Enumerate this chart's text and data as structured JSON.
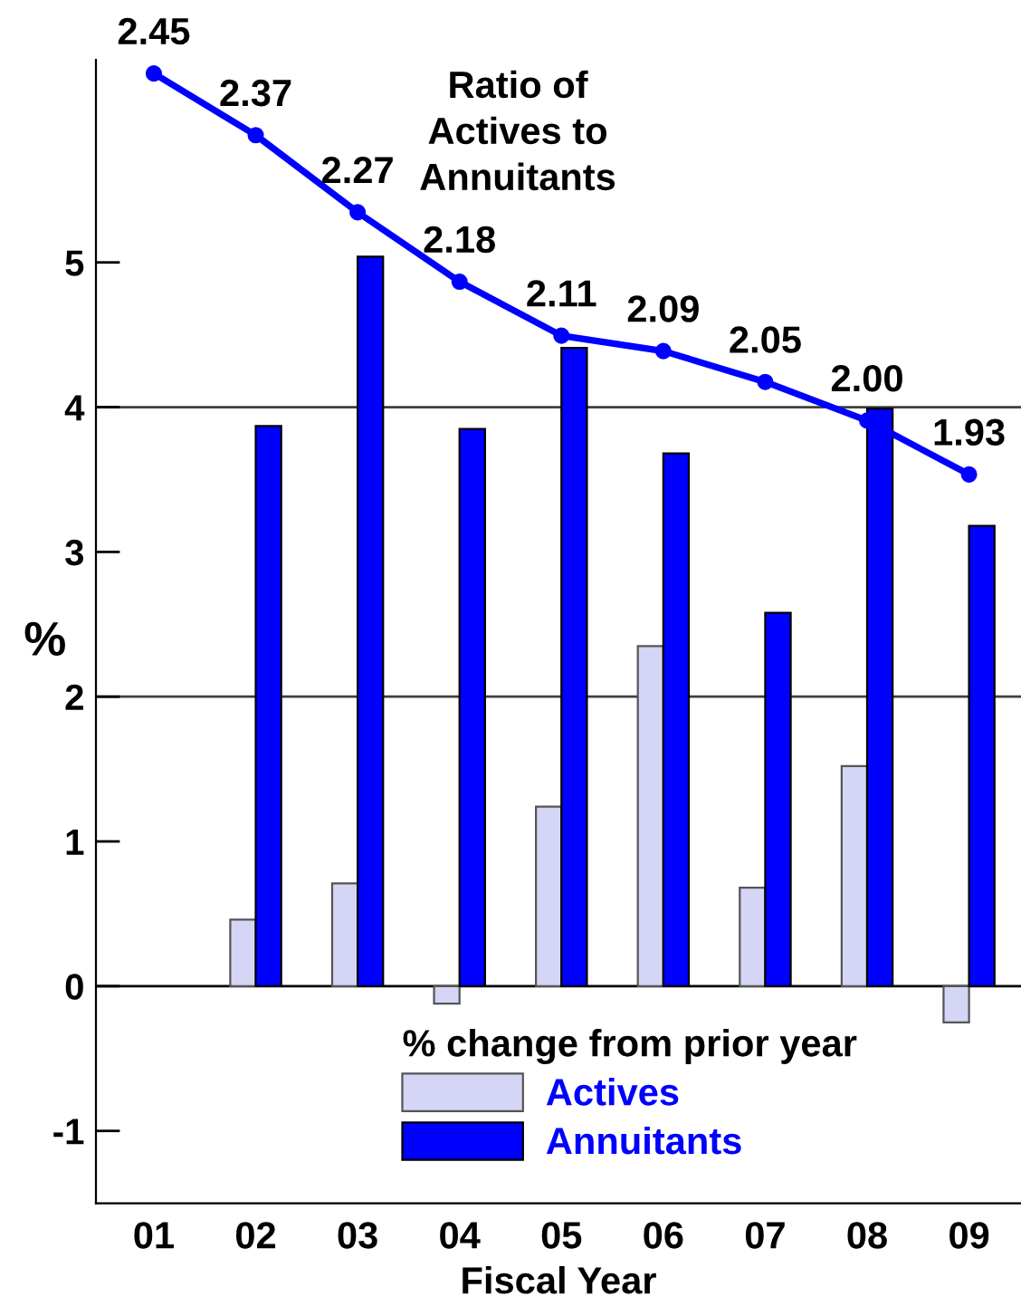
{
  "chart_data": {
    "type": "bar",
    "xlabel": "Fiscal Year",
    "ylabel": "%",
    "legend_title": "% change from prior year",
    "categories": [
      "01",
      "02",
      "03",
      "04",
      "05",
      "06",
      "07",
      "08",
      "09"
    ],
    "series": [
      {
        "name": "Actives",
        "color": "#d5d5f5",
        "values": [
          null,
          0.46,
          0.71,
          -0.12,
          1.24,
          2.35,
          0.68,
          1.52,
          -0.25
        ]
      },
      {
        "name": "Annuitants",
        "color": "#0000ff",
        "values": [
          null,
          3.87,
          5.04,
          3.85,
          4.41,
          3.68,
          2.58,
          3.99,
          3.18
        ]
      },
      {
        "type": "line",
        "axis": "y2",
        "color": "#0000ff",
        "marker": "circle",
        "line_style": "solid",
        "values": [
          2.45,
          2.37,
          2.27,
          2.18,
          2.11,
          2.09,
          2.05,
          2.0,
          1.93
        ],
        "value_labels": [
          "2.45",
          "2.37",
          "2.27",
          "2.18",
          "2.11",
          "2.09",
          "2.05",
          "2.00",
          "1.93"
        ]
      }
    ],
    "annotations": [
      "Ratio of Actives to Annuitants"
    ],
    "ylim": [
      -1.5,
      6.4
    ],
    "yticks": [
      -1,
      0,
      1,
      2,
      3,
      4,
      5
    ],
    "tick_labels": "xy",
    "ref_lines": [
      {
        "axis": "y",
        "value": 0,
        "color": "#000000"
      },
      {
        "axis": "y",
        "value": 2,
        "color": "#404040"
      },
      {
        "axis": "y",
        "value": 4,
        "color": "#404040"
      }
    ],
    "legend": "bottom"
  }
}
